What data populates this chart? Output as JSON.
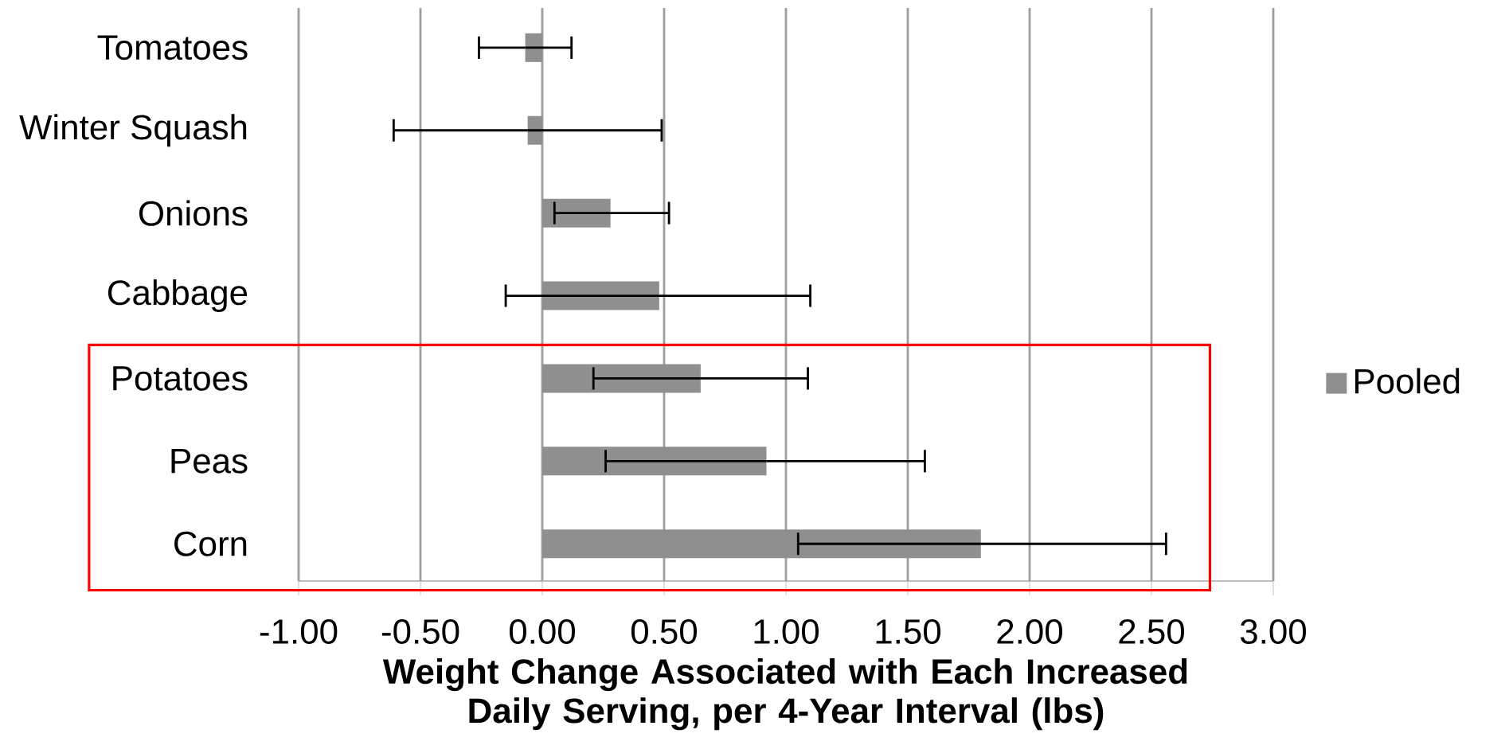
{
  "chart_data": {
    "type": "bar",
    "orientation": "horizontal",
    "categories": [
      "Tomatoes",
      "Winter Squash",
      "Onions",
      "Cabbage",
      "Potatoes",
      "Peas",
      "Corn"
    ],
    "series": [
      {
        "name": "Pooled",
        "color": "#8f8f8f",
        "values": [
          -0.07,
          -0.06,
          0.28,
          0.48,
          0.65,
          0.92,
          1.8
        ],
        "errors": [
          [
            -0.26,
            0.12
          ],
          [
            -0.61,
            0.49
          ],
          [
            0.05,
            0.52
          ],
          [
            -0.15,
            1.1
          ],
          [
            0.21,
            1.09
          ],
          [
            0.26,
            1.57
          ],
          [
            1.05,
            2.56
          ]
        ]
      }
    ],
    "xlabel": "Weight Change Associated with Each Increased Daily Serving, per 4-Year Interval (lbs)",
    "xlim": [
      -1,
      3
    ],
    "xticks": [
      {
        "value": -1,
        "label": "-1.00"
      },
      {
        "value": -0.5,
        "label": "-0.50"
      },
      {
        "value": 0,
        "label": "0.00"
      },
      {
        "value": 0.5,
        "label": "0.50"
      },
      {
        "value": 1,
        "label": "1.00"
      },
      {
        "value": 1.5,
        "label": "1.50"
      },
      {
        "value": 2,
        "label": "2.00"
      },
      {
        "value": 2.5,
        "label": "2.50"
      },
      {
        "value": 3,
        "label": "3.00"
      }
    ],
    "grid": "x",
    "legend": "right"
  }
}
